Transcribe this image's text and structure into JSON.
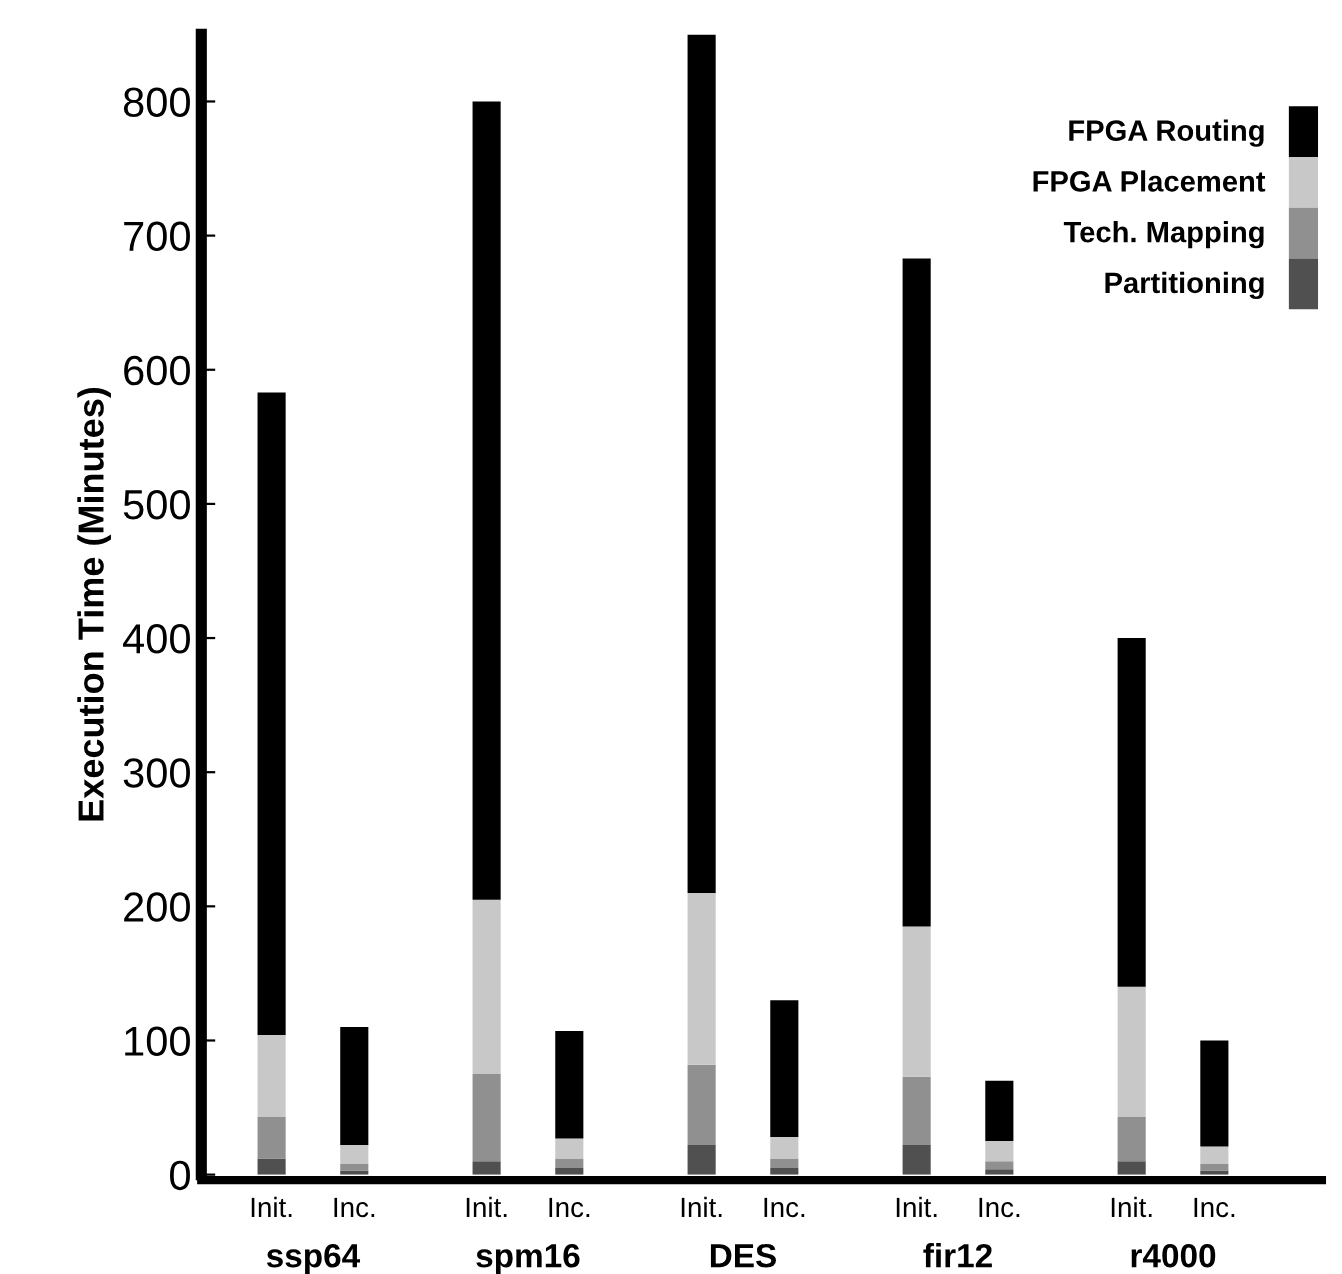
{
  "chart_data": {
    "type": "bar",
    "stacked": true,
    "ylabel": "Execution Time (Minutes)",
    "categories": [
      "Init.",
      "Inc.",
      "Init.",
      "Inc.",
      "Init.",
      "Inc.",
      "Init.",
      "Inc.",
      "Init.",
      "Inc."
    ],
    "annotations": [
      "ssp64",
      "spm16",
      "DES",
      "fir12",
      "r4000"
    ],
    "series": [
      {
        "name": "Partitioning",
        "color": "#505050",
        "values": [
          12,
          3,
          10,
          5,
          22,
          5,
          22,
          4,
          10,
          3
        ]
      },
      {
        "name": "Tech. Mapping",
        "color": "#909090",
        "values": [
          31,
          5,
          65,
          7,
          60,
          7,
          51,
          6,
          33,
          5
        ]
      },
      {
        "name": "FPGA Placement",
        "color": "#c8c8c8",
        "values": [
          61,
          14,
          130,
          15,
          128,
          16,
          112,
          15,
          97,
          13
        ]
      },
      {
        "name": "FPGA Routing",
        "color": "#000000",
        "values": [
          479,
          88,
          595,
          80,
          640,
          102,
          498,
          45,
          260,
          79
        ]
      }
    ],
    "ylim": [
      0,
      850
    ],
    "yticks": [
      0,
      100,
      200,
      300,
      400,
      500,
      600,
      700,
      800
    ],
    "grid": false,
    "legend": "top right"
  }
}
